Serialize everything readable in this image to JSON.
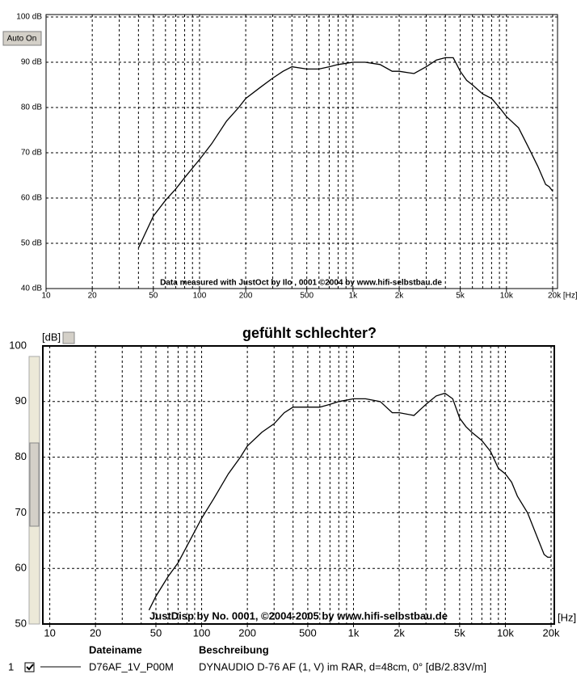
{
  "chart_data": [
    {
      "type": "line",
      "xlog": true,
      "grid": true,
      "xlim": [
        10,
        21000
      ],
      "ylim": [
        40,
        100
      ],
      "xticks": [
        10,
        20,
        50,
        100,
        200,
        500,
        {
          "value": 1000,
          "label": "1k"
        },
        {
          "value": 2000,
          "label": "2k"
        },
        {
          "value": 5000,
          "label": "5k"
        },
        {
          "value": 10000,
          "label": "10k"
        },
        {
          "value": 20000,
          "label": "20k [Hz]"
        }
      ],
      "xgrid": [
        20,
        30,
        40,
        50,
        60,
        70,
        80,
        90,
        100,
        200,
        300,
        400,
        500,
        600,
        700,
        800,
        900,
        1000,
        2000,
        3000,
        4000,
        5000,
        6000,
        7000,
        8000,
        9000,
        10000,
        20000
      ],
      "yticks": [
        {
          "value": 100,
          "label": "100 dB"
        },
        {
          "value": 90,
          "label": "90 dB"
        },
        {
          "value": 80,
          "label": "80 dB"
        },
        {
          "value": 70,
          "label": "70 dB"
        },
        {
          "value": 60,
          "label": "60 dB"
        },
        {
          "value": 50,
          "label": "50 dB"
        },
        {
          "value": 40,
          "label": "40 dB"
        }
      ],
      "watermark": "Data measured with JustOct by Ilo , 0001 ©2004 by www.hifi-selbstbau.de",
      "button": "Auto On",
      "series": [
        {
          "color": "#000000",
          "x": [
            40,
            50,
            60,
            70,
            80,
            100,
            120,
            150,
            180,
            200,
            250,
            300,
            350,
            400,
            500,
            600,
            700,
            800,
            1000,
            1200,
            1500,
            1800,
            2000,
            2500,
            3000,
            3500,
            4000,
            4500,
            5000,
            5500,
            6000,
            7000,
            8000,
            9000,
            10000,
            12000,
            14000,
            16000,
            18000,
            19000,
            20000
          ],
          "values": [
            49,
            56,
            59.5,
            62,
            64.5,
            68.5,
            72,
            77,
            80,
            82,
            84.5,
            86.5,
            88,
            89,
            88.5,
            88.5,
            89,
            89.5,
            90,
            90,
            89.5,
            88,
            88,
            87.5,
            89,
            90.5,
            91,
            91,
            88,
            86,
            85,
            83,
            82,
            80,
            78,
            75.5,
            71,
            67,
            63,
            62.5,
            61.5
          ]
        }
      ]
    },
    {
      "type": "line",
      "title": "gefühlt schlechter?",
      "xlog": true,
      "grid": true,
      "xlim": [
        9,
        21000
      ],
      "ylim": [
        50,
        100
      ],
      "x_unit": "[Hz]",
      "y_unit": "[dB]",
      "xticks": [
        10,
        20,
        50,
        100,
        200,
        500,
        {
          "value": 1000,
          "label": "1k"
        },
        {
          "value": 2000,
          "label": "2k"
        },
        {
          "value": 5000,
          "label": "5k"
        },
        {
          "value": 10000,
          "label": "10k"
        },
        {
          "value": 20000,
          "label": "20k"
        }
      ],
      "xgrid": [
        10,
        20,
        30,
        40,
        50,
        60,
        70,
        80,
        90,
        100,
        200,
        300,
        400,
        500,
        600,
        700,
        800,
        900,
        1000,
        2000,
        3000,
        4000,
        5000,
        6000,
        7000,
        8000,
        9000,
        10000,
        20000
      ],
      "yticks": [
        100,
        90,
        80,
        70,
        60,
        50
      ],
      "watermark": "JustDisp by No. 0001, ©2004-2005 by www.hifi-selbstbau.de",
      "legend": {
        "index": "1",
        "file_header": "Dateiname",
        "desc_header": "Beschreibung",
        "description": "DYNAUDIO D-76 AF (1, V) im RAR, d=48cm, 0° [dB/2.83V/m]"
      },
      "series": [
        {
          "name": "D76AF_1V_P00M",
          "color": "#000000",
          "x": [
            45,
            50,
            60,
            70,
            80,
            100,
            120,
            150,
            180,
            200,
            250,
            300,
            350,
            400,
            500,
            600,
            700,
            800,
            1000,
            1200,
            1500,
            1800,
            2000,
            2500,
            3000,
            3500,
            4000,
            4500,
            5000,
            5500,
            6000,
            7000,
            8000,
            9000,
            10000,
            11000,
            12000,
            14000,
            16000,
            18000,
            19000,
            20000
          ],
          "values": [
            52.5,
            55,
            58.5,
            61,
            64,
            69,
            72.5,
            77,
            80,
            82,
            84.5,
            86,
            88,
            89,
            89,
            89,
            89.5,
            90,
            90.5,
            90.5,
            90,
            88,
            88,
            87.5,
            89.5,
            91,
            91.5,
            90.5,
            87,
            85.5,
            84.5,
            83,
            81,
            78,
            77,
            75.5,
            73,
            70,
            66,
            62.5,
            62,
            62
          ]
        }
      ]
    }
  ]
}
